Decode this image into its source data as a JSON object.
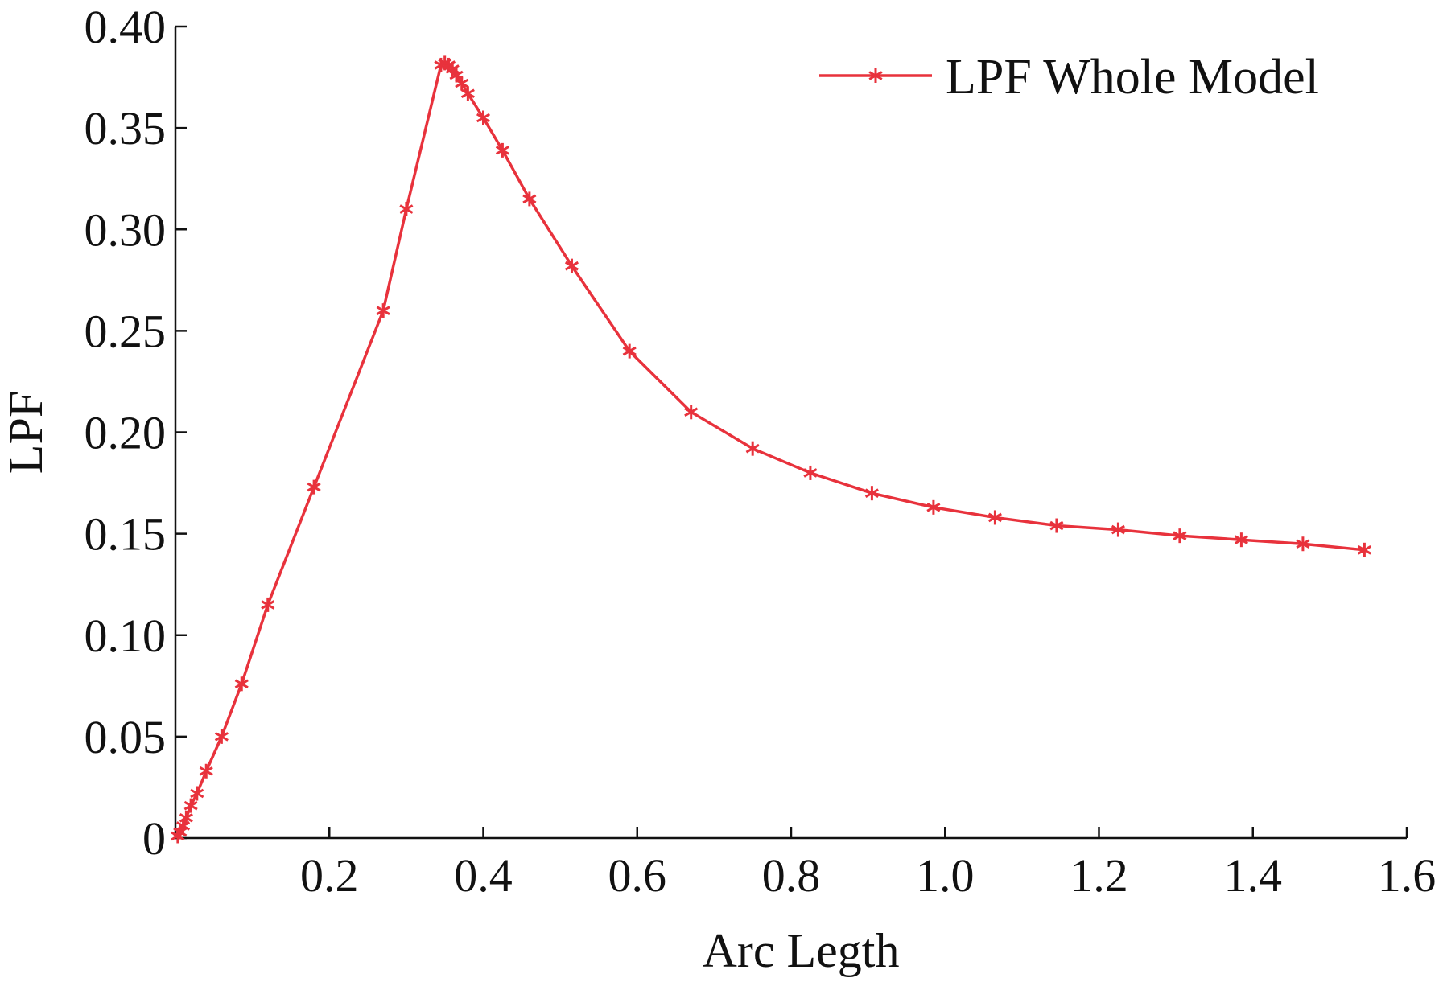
{
  "chart_data": {
    "type": "line",
    "xlabel": "Arc Legth",
    "ylabel": "LPF",
    "xlim": [
      0,
      1.6
    ],
    "ylim": [
      0,
      0.4
    ],
    "x_ticks": [
      "0.2",
      "0.4",
      "0.6",
      "0.8",
      "1.0",
      "1.2",
      "1.4",
      "1.6"
    ],
    "x_tick_values": [
      0.2,
      0.4,
      0.6,
      0.8,
      1.0,
      1.2,
      1.4,
      1.6
    ],
    "y_ticks": [
      "0",
      "0.05",
      "0.10",
      "0.15",
      "0.20",
      "0.25",
      "0.30",
      "0.35",
      "0.40"
    ],
    "y_tick_values": [
      0,
      0.05,
      0.1,
      0.15,
      0.2,
      0.25,
      0.3,
      0.35,
      0.4
    ],
    "grid": false,
    "legend_position": "top-right",
    "series": [
      {
        "name": "LPF Whole Model",
        "color": "#e8323c",
        "marker": "asterisk",
        "x": [
          0.003,
          0.006,
          0.01,
          0.014,
          0.02,
          0.028,
          0.04,
          0.06,
          0.086,
          0.12,
          0.18,
          0.27,
          0.3,
          0.345,
          0.35,
          0.355,
          0.36,
          0.365,
          0.372,
          0.38,
          0.4,
          0.425,
          0.46,
          0.515,
          0.59,
          0.67,
          0.75,
          0.825,
          0.905,
          0.985,
          1.065,
          1.145,
          1.225,
          1.305,
          1.385,
          1.465,
          1.545
        ],
        "y": [
          0.001,
          0.003,
          0.006,
          0.01,
          0.016,
          0.022,
          0.033,
          0.05,
          0.076,
          0.115,
          0.173,
          0.26,
          0.31,
          0.381,
          0.382,
          0.381,
          0.379,
          0.376,
          0.372,
          0.367,
          0.355,
          0.339,
          0.315,
          0.282,
          0.24,
          0.21,
          0.192,
          0.18,
          0.17,
          0.163,
          0.158,
          0.154,
          0.152,
          0.149,
          0.147,
          0.145,
          0.142
        ]
      }
    ]
  }
}
